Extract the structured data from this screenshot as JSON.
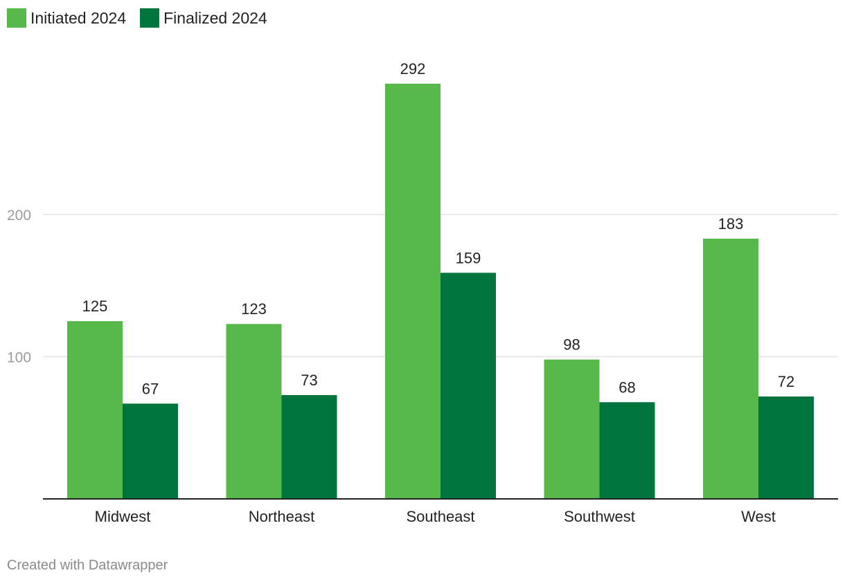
{
  "legend": {
    "items": [
      {
        "label": "Initiated 2024",
        "color": "#57b94a"
      },
      {
        "label": "Finalized 2024",
        "color": "#00743d"
      }
    ]
  },
  "chart_data": {
    "type": "bar",
    "categories": [
      "Midwest",
      "Northeast",
      "Southeast",
      "Southwest",
      "West"
    ],
    "series": [
      {
        "name": "Initiated 2024",
        "color": "#57b94a",
        "values": [
          125,
          123,
          292,
          98,
          183
        ]
      },
      {
        "name": "Finalized 2024",
        "color": "#00743d",
        "values": [
          67,
          73,
          159,
          68,
          72
        ]
      }
    ],
    "y_ticks": [
      100,
      200
    ],
    "ylim": [
      0,
      300
    ],
    "grid": true,
    "legend_position": "top-left",
    "title": "",
    "xlabel": "",
    "ylabel": ""
  },
  "footer": {
    "credit": "Created with Datawrapper"
  }
}
